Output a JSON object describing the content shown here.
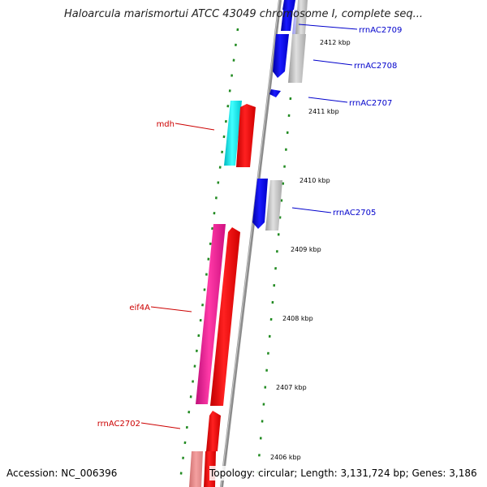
{
  "title": "Haloarcula marismortui ATCC 43049 chromosome I, complete seq...",
  "footer": {
    "accession": "Accession: NC_006396",
    "topology": "Topology: circular; Length: 3,131,724 bp; Genes: 3,186"
  },
  "ticks": [
    "2412 kbp",
    "2411 kbp",
    "2410 kbp",
    "2409 kbp",
    "2408 kbp",
    "2407 kbp",
    "2406 kbp"
  ],
  "genes": [
    {
      "label": "rrnAC2709",
      "strand": "+",
      "color": "#0000ee",
      "label_color": "#0000cc"
    },
    {
      "label": "rrnAC2708",
      "strand": "+",
      "color": "#0000ee",
      "label_color": "#0000cc"
    },
    {
      "label": "rrnAC2707",
      "strand": "+",
      "color": "#0000ee",
      "label_color": "#0000cc"
    },
    {
      "label": "mdh",
      "strand": "-",
      "color": "#ff0000",
      "label_color": "#cc0000"
    },
    {
      "label": "rrnAC2705",
      "strand": "+",
      "color": "#0000ee",
      "label_color": "#0000cc"
    },
    {
      "label": "eif4A",
      "strand": "-",
      "color": "#ff0000",
      "label_color": "#cc0000"
    },
    {
      "label": "rrnAC2702",
      "strand": "-",
      "color": "#ff0000",
      "label_color": "#cc0000"
    }
  ],
  "colors": {
    "forward": "#0000ee",
    "reverse": "#ff0000",
    "cyan_track": "#00e5ee",
    "magenta_track": "#ee1493",
    "backbone": "#8c8c8c",
    "tick": "#228b22"
  }
}
